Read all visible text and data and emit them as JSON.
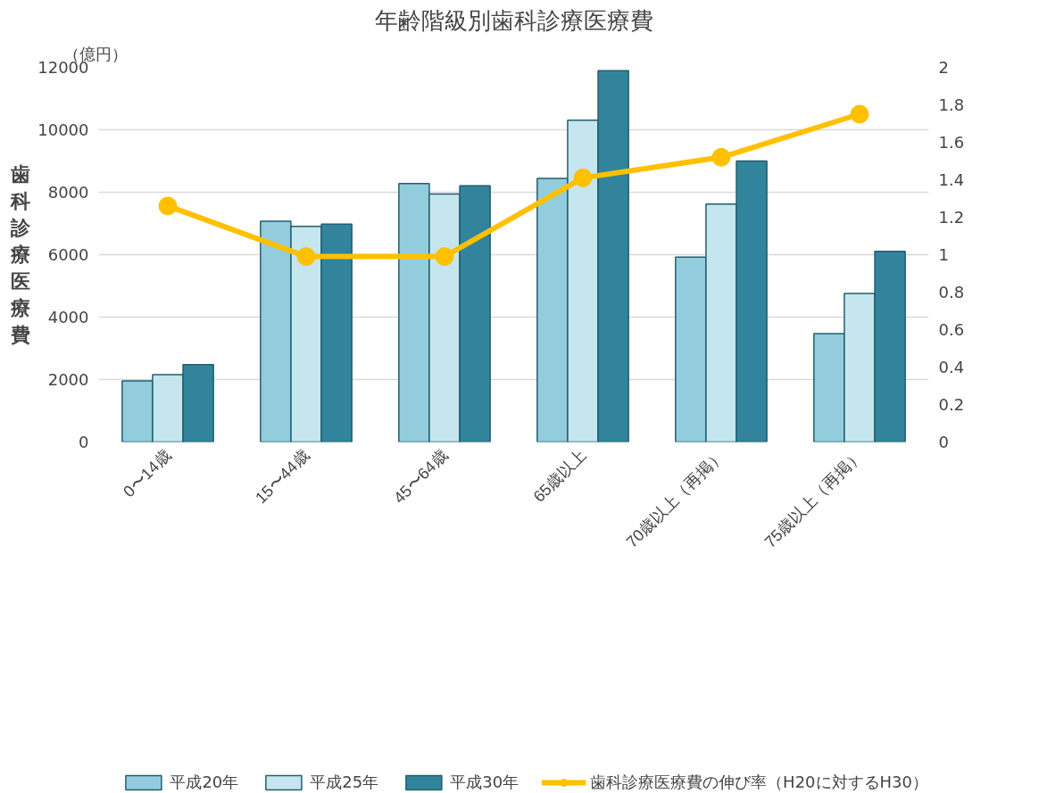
{
  "chart_data": {
    "type": "bar",
    "title": "年齢階級別歯科診療医療費",
    "ylabel": "歯科診療医療費",
    "annotations": [
      "（億円）"
    ],
    "categories": [
      "0〜14歳",
      "15〜44歳",
      "45〜64歳",
      "65歳以上",
      "70歳以上（再掲）",
      "75歳以上（再掲）"
    ],
    "series": [
      {
        "name": "平成20年",
        "color": "#93cddd",
        "values": [
          1960,
          7070,
          8280,
          8440,
          5920,
          3470
        ]
      },
      {
        "name": "平成25年",
        "color": "#c6e6ef",
        "values": [
          2160,
          6910,
          7940,
          10310,
          7620,
          4760
        ]
      },
      {
        "name": "平成30年",
        "color": "#31849b",
        "values": [
          2480,
          6980,
          8210,
          11890,
          9000,
          6110
        ]
      },
      {
        "name": "歯科診療医療費の伸び率（H20に対するH30）",
        "type": "line",
        "axis": "y2",
        "color": "#ffc000",
        "marker": "circle",
        "values": [
          1.26,
          0.99,
          0.99,
          1.41,
          1.52,
          1.75
        ]
      }
    ],
    "ylim": [
      0,
      12000
    ],
    "yticks": [
      0,
      2000,
      4000,
      6000,
      8000,
      10000,
      12000
    ],
    "y2lim": [
      0,
      2
    ],
    "y2ticks": [
      0,
      0.2,
      0.4,
      0.6,
      0.8,
      1,
      1.2,
      1.4,
      1.6,
      1.8,
      2
    ],
    "grid": "y",
    "legend": "bottom"
  }
}
